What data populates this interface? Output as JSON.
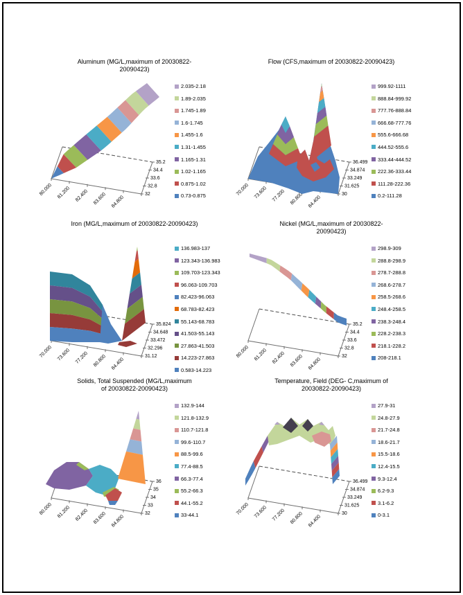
{
  "page": {
    "background": "#ffffff",
    "border_color": "#000000"
  },
  "style": {
    "edge_color": "#6e6e6e",
    "back_edge_color": "#4d4d4d",
    "tick_color": "#6e6e6e",
    "label_color": "#000000",
    "title_color": "#000000",
    "legend_text_color": "#000000"
  },
  "chart_data": [
    {
      "id": "aluminum",
      "type": "3d-surface",
      "title": "Aluminum (MG/L,maximum of 20030822-20090423)",
      "x_ticks": [
        "80.000",
        "81.200",
        "82.400",
        "83.600",
        "84.800"
      ],
      "depth_ticks": [
        "32",
        "32.8",
        "33.6",
        "34.4",
        "35.2"
      ],
      "value_range": [
        0.73,
        2.18
      ],
      "legend": [
        {
          "label": "2.035-2.18",
          "color": "#B3A2C7"
        },
        {
          "label": "1.89-2.035",
          "color": "#C3D69B"
        },
        {
          "label": "1.745-1.89",
          "color": "#D99694"
        },
        {
          "label": "1.6-1.745",
          "color": "#95B3D7"
        },
        {
          "label": "1.455-1.6",
          "color": "#F79646"
        },
        {
          "label": "1.31-1.455",
          "color": "#4BACC6"
        },
        {
          "label": "1.165-1.31",
          "color": "#8064A2"
        },
        {
          "label": "1.02-1.165",
          "color": "#9BBB59"
        },
        {
          "label": "0.875-1.02",
          "color": "#C0504D"
        },
        {
          "label": "0.73-0.875",
          "color": "#4F81BD"
        }
      ]
    },
    {
      "id": "flow",
      "type": "3d-surface",
      "title": "Flow (CFS,maximum of 20030822-20090423)",
      "x_ticks": [
        "70.000",
        "73.600",
        "77.200",
        "80.800",
        "84.400"
      ],
      "depth_ticks": [
        "30",
        "31.625",
        "33.249",
        "34.874",
        "36.499"
      ],
      "value_range": [
        0.2,
        1111
      ],
      "legend": [
        {
          "label": "999.92-1111",
          "color": "#B3A2C7"
        },
        {
          "label": "888.84-999.92",
          "color": "#C3D69B"
        },
        {
          "label": "777.76-888.84",
          "color": "#D99694"
        },
        {
          "label": "666.68-777.76",
          "color": "#95B3D7"
        },
        {
          "label": "555.6-666.68",
          "color": "#F79646"
        },
        {
          "label": "444.52-555.6",
          "color": "#4BACC6"
        },
        {
          "label": "333.44-444.52",
          "color": "#8064A2"
        },
        {
          "label": "222.36-333.44",
          "color": "#9BBB59"
        },
        {
          "label": "111.28-222.36",
          "color": "#C0504D"
        },
        {
          "label": "0.2-111.28",
          "color": "#4F81BD"
        }
      ]
    },
    {
      "id": "iron",
      "type": "3d-surface",
      "title": "Iron (MG/L,maximum of 20030822-20090423)",
      "x_ticks": [
        "70.000",
        "73.600",
        "77.200",
        "80.800",
        "84.400"
      ],
      "depth_ticks": [
        "31.12",
        "32.296",
        "33.472",
        "34.648",
        "35.824"
      ],
      "value_range": [
        0.583,
        137
      ],
      "legend": [
        {
          "label": "136.983-137",
          "color": "#4BACC6"
        },
        {
          "label": "123.343-136.983",
          "color": "#8064A2"
        },
        {
          "label": "109.703-123.343",
          "color": "#9BBB59"
        },
        {
          "label": "96.063-109.703",
          "color": "#C0504D"
        },
        {
          "label": "82.423-96.063",
          "color": "#4F81BD"
        },
        {
          "label": "68.783-82.423",
          "color": "#E26B0A"
        },
        {
          "label": "55.143-68.783",
          "color": "#31859C"
        },
        {
          "label": "41.503-55.143",
          "color": "#655089"
        },
        {
          "label": "27.863-41.503",
          "color": "#789440"
        },
        {
          "label": "14.223-27.863",
          "color": "#963B38"
        },
        {
          "label": "0.583-14.223",
          "color": "#4F81BD"
        }
      ]
    },
    {
      "id": "nickel",
      "type": "3d-surface",
      "title": "Nickel (MG/L,maximum of 20030822-20090423)",
      "x_ticks": [
        "80.000",
        "81.200",
        "82.400",
        "83.600",
        "84.800"
      ],
      "depth_ticks": [
        "32",
        "32.8",
        "33.6",
        "34.4",
        "35.2"
      ],
      "value_range": [
        208,
        309
      ],
      "legend": [
        {
          "label": "298.9-309",
          "color": "#B3A2C7"
        },
        {
          "label": "288.8-298.9",
          "color": "#C3D69B"
        },
        {
          "label": "278.7-288.8",
          "color": "#D99694"
        },
        {
          "label": "268.6-278.7",
          "color": "#95B3D7"
        },
        {
          "label": "258.5-268.6",
          "color": "#F79646"
        },
        {
          "label": "248.4-258.5",
          "color": "#4BACC6"
        },
        {
          "label": "238.3-248.4",
          "color": "#8064A2"
        },
        {
          "label": "228.2-238.3",
          "color": "#9BBB59"
        },
        {
          "label": "218.1-228.2",
          "color": "#C0504D"
        },
        {
          "label": "208-218.1",
          "color": "#4F81BD"
        }
      ]
    },
    {
      "id": "solids-total-suspended",
      "type": "3d-surface",
      "title": "Solids, Total Suspended (MG/L,maximum of 20030822-20090423)",
      "x_ticks": [
        "80.000",
        "81.200",
        "82.400",
        "83.600",
        "84.800"
      ],
      "depth_ticks": [
        "32",
        "33",
        "34",
        "35",
        "36"
      ],
      "value_range": [
        33,
        144
      ],
      "legend": [
        {
          "label": "132.9-144",
          "color": "#B3A2C7"
        },
        {
          "label": "121.8-132.9",
          "color": "#C3D69B"
        },
        {
          "label": "110.7-121.8",
          "color": "#D99694"
        },
        {
          "label": "99.6-110.7",
          "color": "#95B3D7"
        },
        {
          "label": "88.5-99.6",
          "color": "#F79646"
        },
        {
          "label": "77.4-88.5",
          "color": "#4BACC6"
        },
        {
          "label": "66.3-77.4",
          "color": "#8064A2"
        },
        {
          "label": "55.2-66.3",
          "color": "#9BBB59"
        },
        {
          "label": "44.1-55.2",
          "color": "#C0504D"
        },
        {
          "label": "33-44.1",
          "color": "#4F81BD"
        }
      ]
    },
    {
      "id": "temperature-field",
      "type": "3d-surface",
      "title": "Temperature, Field (DEG- C,maximum of 20030822-20090423)",
      "x_ticks": [
        "70.000",
        "73.600",
        "77.200",
        "80.800",
        "84.400"
      ],
      "depth_ticks": [
        "30",
        "31.625",
        "33.249",
        "34.874",
        "36.499"
      ],
      "value_range": [
        0,
        31
      ],
      "shade_color": "#443F4E",
      "legend": [
        {
          "label": "27.9-31",
          "color": "#B3A2C7"
        },
        {
          "label": "24.8-27.9",
          "color": "#C3D69B"
        },
        {
          "label": "21.7-24.8",
          "color": "#D99694"
        },
        {
          "label": "18.6-21.7",
          "color": "#95B3D7"
        },
        {
          "label": "15.5-18.6",
          "color": "#F79646"
        },
        {
          "label": "12.4-15.5",
          "color": "#4BACC6"
        },
        {
          "label": "9.3-12.4",
          "color": "#8064A2"
        },
        {
          "label": "6.2-9.3",
          "color": "#9BBB59"
        },
        {
          "label": "3.1-6.2",
          "color": "#C0504D"
        },
        {
          "label": "0-3.1",
          "color": "#4F81BD"
        }
      ]
    }
  ]
}
